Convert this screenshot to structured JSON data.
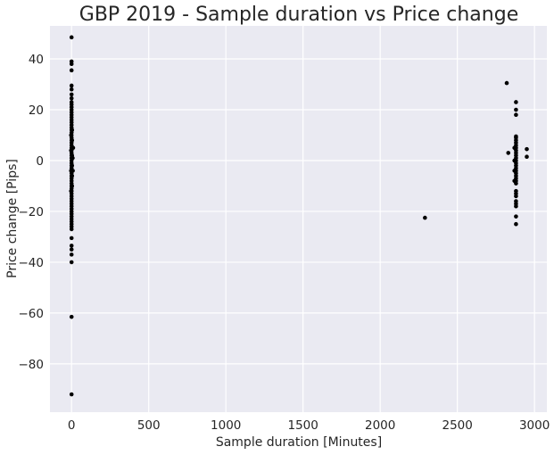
{
  "chart_data": {
    "type": "scatter",
    "title": "GBP 2019 - Sample duration vs Price change",
    "xlabel": "Sample duration [Minutes]",
    "ylabel": "Price change [Pips]",
    "xlim": [
      -140,
      3080
    ],
    "ylim": [
      -99,
      53
    ],
    "xticks": [
      0,
      500,
      1000,
      1500,
      2000,
      2500,
      3000
    ],
    "yticks": [
      -80,
      -60,
      -40,
      -20,
      0,
      20,
      40
    ],
    "grid": true,
    "marker_color": "#000000",
    "background_color": "#eaeaf2",
    "points": [
      [
        0,
        48.5
      ],
      [
        0,
        39
      ],
      [
        0,
        38
      ],
      [
        0,
        35.5
      ],
      [
        0,
        29.5
      ],
      [
        0,
        28
      ],
      [
        0,
        26
      ],
      [
        0,
        24.5
      ],
      [
        0,
        23
      ],
      [
        0,
        22
      ],
      [
        0,
        21
      ],
      [
        0,
        20
      ],
      [
        0,
        19
      ],
      [
        0,
        18
      ],
      [
        0,
        17
      ],
      [
        0,
        16
      ],
      [
        0,
        15
      ],
      [
        0,
        14
      ],
      [
        0,
        13
      ],
      [
        0,
        12
      ],
      [
        0,
        11
      ],
      [
        0,
        10
      ],
      [
        0,
        9
      ],
      [
        0,
        8
      ],
      [
        0,
        7
      ],
      [
        0,
        6
      ],
      [
        0,
        5
      ],
      [
        0,
        4
      ],
      [
        0,
        3
      ],
      [
        0,
        2
      ],
      [
        0,
        1
      ],
      [
        0,
        0
      ],
      [
        0,
        -1
      ],
      [
        0,
        -2
      ],
      [
        0,
        -3
      ],
      [
        0,
        -4
      ],
      [
        0,
        -5
      ],
      [
        0,
        -6
      ],
      [
        0,
        -7
      ],
      [
        0,
        -8
      ],
      [
        0,
        -9
      ],
      [
        0,
        -10
      ],
      [
        0,
        -11
      ],
      [
        0,
        -12
      ],
      [
        0,
        -13
      ],
      [
        0,
        -14
      ],
      [
        0,
        -15
      ],
      [
        0,
        -16
      ],
      [
        0,
        -17
      ],
      [
        0,
        -18
      ],
      [
        0,
        -19
      ],
      [
        0,
        -20
      ],
      [
        0,
        -21
      ],
      [
        0,
        -22
      ],
      [
        0,
        -23
      ],
      [
        0,
        -24
      ],
      [
        0,
        -25
      ],
      [
        0,
        -26
      ],
      [
        0,
        -27
      ],
      [
        0,
        -30.5
      ],
      [
        0,
        -33.5
      ],
      [
        0,
        -35
      ],
      [
        0,
        -37
      ],
      [
        0,
        -40
      ],
      [
        0,
        -61.5
      ],
      [
        0,
        -92
      ],
      [
        3,
        12
      ],
      [
        3,
        8
      ],
      [
        3,
        5
      ],
      [
        3,
        2
      ],
      [
        3,
        -2
      ],
      [
        3,
        -6
      ],
      [
        3,
        -10
      ],
      [
        -3,
        10
      ],
      [
        -3,
        4
      ],
      [
        -3,
        -4
      ],
      [
        -3,
        -12
      ],
      [
        10,
        5
      ],
      [
        7,
        1
      ],
      [
        8,
        -4
      ],
      [
        2290,
        -22.5
      ],
      [
        2820,
        30.5
      ],
      [
        2830,
        3
      ],
      [
        2870,
        5
      ],
      [
        2870,
        0
      ],
      [
        2870,
        -4
      ],
      [
        2870,
        -8
      ],
      [
        2880,
        23
      ],
      [
        2880,
        20
      ],
      [
        2880,
        18
      ],
      [
        2880,
        9.5
      ],
      [
        2880,
        9
      ],
      [
        2880,
        8
      ],
      [
        2880,
        7
      ],
      [
        2880,
        6
      ],
      [
        2880,
        5
      ],
      [
        2880,
        4
      ],
      [
        2880,
        3
      ],
      [
        2880,
        2
      ],
      [
        2880,
        1
      ],
      [
        2880,
        0
      ],
      [
        2880,
        -1
      ],
      [
        2880,
        -2
      ],
      [
        2880,
        -3
      ],
      [
        2880,
        -4
      ],
      [
        2880,
        -5
      ],
      [
        2880,
        -6
      ],
      [
        2880,
        -7
      ],
      [
        2880,
        -8
      ],
      [
        2880,
        -9
      ],
      [
        2880,
        -12
      ],
      [
        2880,
        -13
      ],
      [
        2880,
        -14
      ],
      [
        2880,
        -16
      ],
      [
        2880,
        -17
      ],
      [
        2880,
        -18
      ],
      [
        2880,
        -22
      ],
      [
        2880,
        -25
      ],
      [
        2950,
        4.5
      ],
      [
        2950,
        1.5
      ]
    ]
  }
}
